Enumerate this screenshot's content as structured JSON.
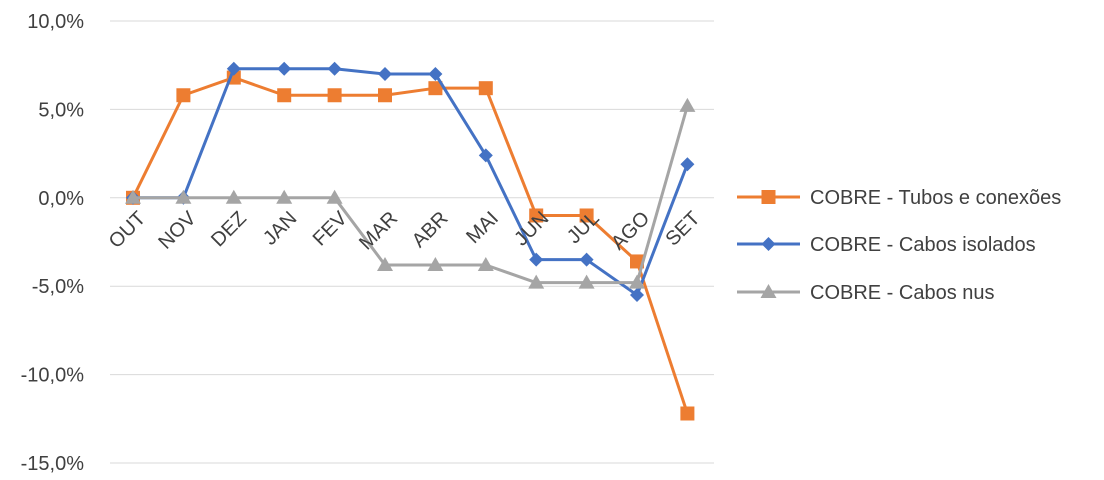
{
  "chart_data": {
    "type": "line",
    "categories": [
      "OUT",
      "NOV",
      "DEZ",
      "JAN",
      "FEV",
      "MAR",
      "ABR",
      "MAI",
      "JUN",
      "JUL",
      "AGO",
      "SET"
    ],
    "ylim": [
      -15,
      10
    ],
    "yticks": [
      10,
      5,
      0,
      -5,
      -10,
      -15
    ],
    "ytick_labels": [
      "10,0%",
      "5,0%",
      "0,0%",
      "-5,0%",
      "-10,0%",
      "-15,0%"
    ],
    "grid": true,
    "legend_position": "right",
    "series": [
      {
        "name": "COBRE - Tubos e conexões",
        "color": "#ed7d31",
        "marker": "square",
        "values": [
          0.0,
          5.8,
          6.8,
          5.8,
          5.8,
          5.8,
          6.2,
          6.2,
          -1.0,
          -1.0,
          -3.6,
          -12.2
        ]
      },
      {
        "name": "COBRE - Cabos isolados",
        "color": "#4472c4",
        "marker": "diamond",
        "values": [
          0.0,
          0.0,
          7.3,
          7.3,
          7.3,
          7.0,
          7.0,
          2.4,
          -3.5,
          -3.5,
          -5.5,
          1.9
        ]
      },
      {
        "name": "COBRE - Cabos nus",
        "color": "#a5a5a5",
        "marker": "triangle",
        "values": [
          0.0,
          0.0,
          0.0,
          0.0,
          0.0,
          -3.8,
          -3.8,
          -3.8,
          -4.8,
          -4.8,
          -4.8,
          5.2
        ]
      }
    ]
  }
}
